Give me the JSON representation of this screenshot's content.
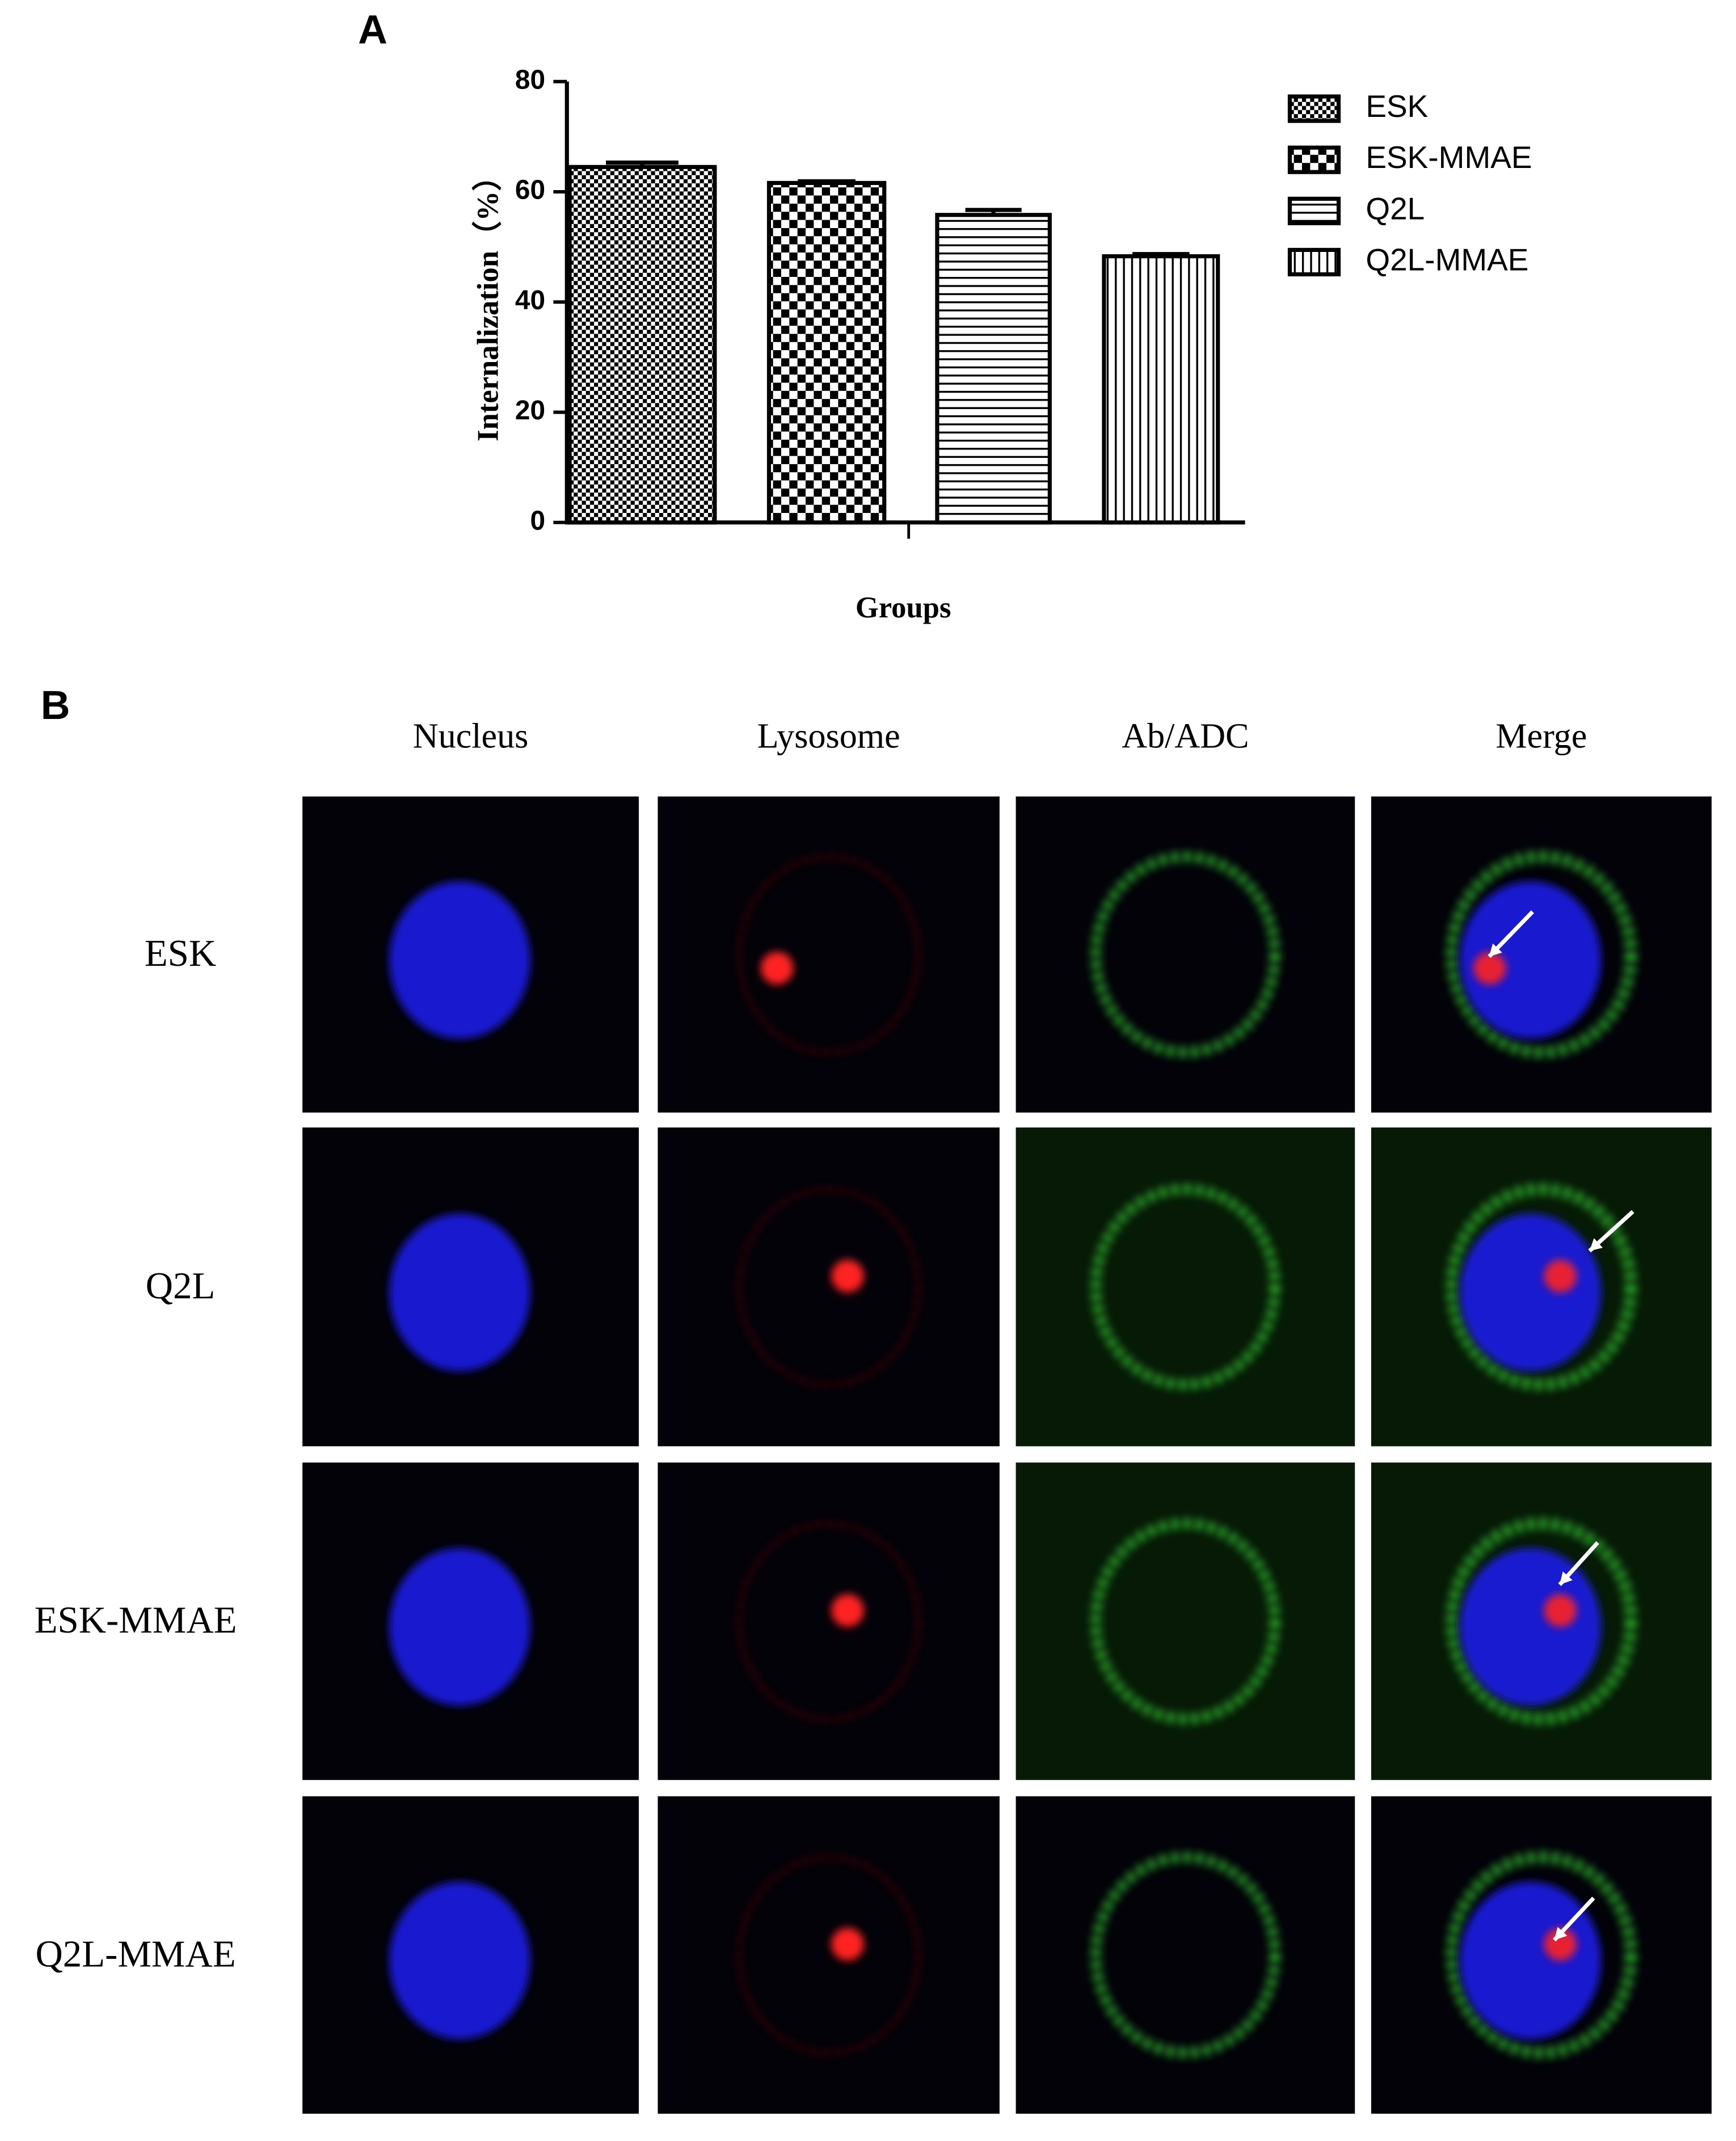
{
  "chart_data": {
    "type": "bar",
    "panel_label": "A",
    "x_label": "Groups",
    "y_label": "Internalization（%）",
    "categories": [
      "ESK",
      "ESK-MMAE",
      "Q2L",
      "Q2L-MMAE"
    ],
    "values": [
      64.5,
      61.6,
      55.8,
      48.3
    ],
    "errors": [
      0.8,
      0.3,
      0.9,
      0.4
    ],
    "ylim": [
      0,
      80
    ],
    "yticks": [
      0,
      20,
      40,
      60,
      80
    ],
    "color": "#000000",
    "legend": "right"
  },
  "microscopy": {
    "panel_label": "B",
    "columns": [
      "Nucleus",
      "Lysosome",
      "Ab/ADC",
      "Merge"
    ],
    "rows": [
      "ESK",
      "Q2L",
      "ESK-MMAE",
      "Q2L-MMAE"
    ]
  }
}
